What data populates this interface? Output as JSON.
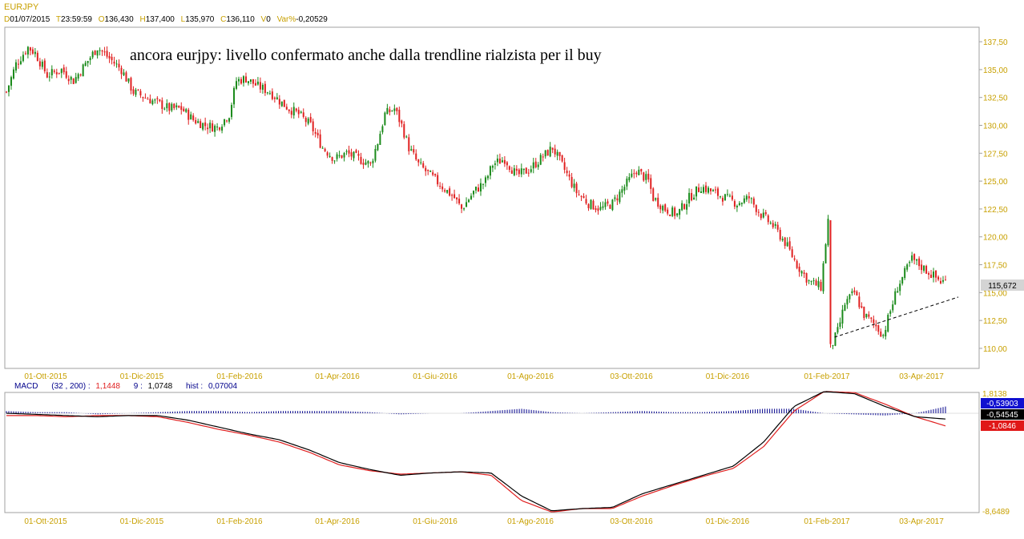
{
  "header": {
    "symbol": "EURJPY",
    "d_tag": "D",
    "date": "01/07/2015",
    "t_tag": "T",
    "time": "23:59:59",
    "o_tag": "O",
    "open": "136,430",
    "h_tag": "H",
    "high": "137,400",
    "l_tag": "L",
    "low": "135,970",
    "c_tag": "C",
    "close": "136,110",
    "v_tag": "V",
    "volume": "0",
    "var_tag": "Var%",
    "var": "-0,20529"
  },
  "annotation": "ancora eurjpy: livello confermato anche dalla trendline rialzista per il buy",
  "macd_header": {
    "name": "MACD",
    "params": "(32 , 200) :",
    "macd_value": "1,1448",
    "signal_period": "9 :",
    "signal_value": "1,0748",
    "hist_label": "hist :",
    "hist_value": "0,07004"
  },
  "colors": {
    "up_candle": "#1a8a1a",
    "down_candle": "#e02020",
    "axis_text": "#c8a000",
    "macd_line": "#000000",
    "signal_line": "#e02020",
    "histogram": "#00008b",
    "badge_blue": "#1010d0",
    "badge_black": "#000000",
    "badge_red": "#e01818",
    "badge_price": "#d4d4d4"
  },
  "chart_data": [
    {
      "type": "candlestick",
      "title": "EURJPY",
      "x_tick_labels": [
        "01-Ott-2015",
        "01-Dic-2015",
        "01-Feb-2016",
        "01-Apr-2016",
        "01-Giu-2016",
        "01-Ago-2016",
        "03-Ott-2016",
        "01-Dic-2016",
        "01-Feb-2017",
        "03-Apr-2017"
      ],
      "y_ticks": [
        "137,50",
        "135,00",
        "132,50",
        "130,00",
        "127,50",
        "125,00",
        "122,50",
        "120,00",
        "117,50",
        "115,00",
        "112,50",
        "110,00"
      ],
      "y_tick_values": [
        137.5,
        135.0,
        132.5,
        130.0,
        127.5,
        125.0,
        122.5,
        120.0,
        117.5,
        115.0,
        112.5,
        110.0
      ],
      "ylim": [
        108.2,
        138.8
      ],
      "x_index_range": [
        0,
        392
      ],
      "last_price_label": "115,672",
      "last_price": 115.672,
      "trendline": {
        "points": [
          [
            4,
            111.0
          ],
          [
            392,
            114.6
          ]
        ],
        "style": "dashed"
      },
      "close_path": [
        [
          0,
          133.0
        ],
        [
          4,
          135.5
        ],
        [
          9,
          137.0
        ],
        [
          12,
          136.5
        ],
        [
          17,
          134.5
        ],
        [
          23,
          135.0
        ],
        [
          28,
          134.0
        ],
        [
          33,
          135.5
        ],
        [
          38,
          137.0
        ],
        [
          43,
          136.0
        ],
        [
          48,
          135.0
        ],
        [
          53,
          133.0
        ],
        [
          58,
          132.5
        ],
        [
          63,
          132.0
        ],
        [
          68,
          131.5
        ],
        [
          73,
          131.5
        ],
        [
          78,
          130.5
        ],
        [
          83,
          130.0
        ],
        [
          88,
          129.8
        ],
        [
          93,
          131.0
        ],
        [
          96,
          134.0
        ],
        [
          100,
          134.2
        ],
        [
          105,
          133.5
        ],
        [
          110,
          133.0
        ],
        [
          115,
          132.0
        ],
        [
          118,
          131.5
        ],
        [
          122,
          131.0
        ],
        [
          127,
          130.0
        ],
        [
          132,
          128.0
        ],
        [
          137,
          127.0
        ],
        [
          142,
          127.5
        ],
        [
          147,
          127.0
        ],
        [
          152,
          126.5
        ],
        [
          155,
          128.5
        ],
        [
          158,
          131.0
        ],
        [
          162,
          131.5
        ],
        [
          165,
          130.0
        ],
        [
          168,
          128.0
        ],
        [
          172,
          126.5
        ],
        [
          177,
          125.5
        ],
        [
          182,
          124.5
        ],
        [
          187,
          123.5
        ],
        [
          190,
          122.5
        ],
        [
          195,
          124.0
        ],
        [
          200,
          125.0
        ],
        [
          203,
          126.5
        ],
        [
          208,
          127.0
        ],
        [
          213,
          125.5
        ],
        [
          218,
          126.0
        ],
        [
          223,
          127.0
        ],
        [
          228,
          128.0
        ],
        [
          233,
          126.0
        ],
        [
          238,
          124.0
        ],
        [
          243,
          123.0
        ],
        [
          248,
          122.5
        ],
        [
          253,
          123.0
        ],
        [
          258,
          124.5
        ],
        [
          263,
          126.0
        ],
        [
          268,
          125.0
        ],
        [
          270,
          123.5
        ],
        [
          275,
          122.5
        ],
        [
          280,
          122.0
        ],
        [
          285,
          123.5
        ],
        [
          290,
          124.5
        ],
        [
          295,
          124.0
        ],
        [
          300,
          123.5
        ],
        [
          305,
          123.0
        ],
        [
          310,
          123.5
        ],
        [
          315,
          122.0
        ],
        [
          320,
          121.0
        ],
        [
          325,
          119.5
        ],
        [
          330,
          117.5
        ],
        [
          335,
          116.0
        ],
        [
          340,
          115.5
        ],
        [
          343,
          121.5
        ],
        [
          344,
          110.0
        ],
        [
          347,
          111.5
        ],
        [
          350,
          114.0
        ],
        [
          354,
          115.0
        ],
        [
          358,
          113.0
        ],
        [
          363,
          112.0
        ],
        [
          366,
          111.2
        ],
        [
          372,
          115.5
        ],
        [
          378,
          118.0
        ],
        [
          384,
          117.0
        ],
        [
          390,
          116.0
        ]
      ]
    },
    {
      "type": "line",
      "title": "MACD",
      "x_tick_labels": [
        "01-Ott-2015",
        "01-Dic-2015",
        "01-Feb-2016",
        "01-Apr-2016",
        "01-Giu-2016",
        "01-Ago-2016",
        "03-Ott-2016",
        "01-Dic-2016",
        "01-Feb-2017",
        "03-Apr-2017"
      ],
      "y_max_label": "1,8138",
      "y_min_label": "-8,6489",
      "ylim": [
        -8.6489,
        1.8138
      ],
      "badges": [
        "-0,53903",
        "-0,54545",
        "-1,0846"
      ],
      "series": [
        {
          "name": "MACD (32 , 200)",
          "values": [
            0.0,
            -0.1,
            -0.2,
            -0.3,
            -0.2,
            -0.2,
            -0.6,
            -1.2,
            -1.8,
            -2.3,
            -3.2,
            -4.3,
            -4.9,
            -5.4,
            -5.2,
            -5.1,
            -5.2,
            -7.2,
            -8.5,
            -8.3,
            -8.2,
            -7.0,
            -6.2,
            -5.4,
            -4.6,
            -2.5,
            0.6,
            1.9,
            1.7,
            0.6,
            -0.3,
            -0.5
          ]
        },
        {
          "name": "Signal 9",
          "values": [
            -0.2,
            -0.2,
            -0.3,
            -0.2,
            -0.2,
            -0.3,
            -0.8,
            -1.4,
            -1.9,
            -2.5,
            -3.4,
            -4.5,
            -5.0,
            -5.3,
            -5.2,
            -5.1,
            -5.4,
            -7.6,
            -8.6,
            -8.3,
            -8.3,
            -7.2,
            -6.3,
            -5.5,
            -4.8,
            -2.9,
            0.2,
            1.9,
            1.8,
            0.8,
            -0.3,
            -1.1
          ]
        },
        {
          "name": "hist",
          "values": [
            0.2,
            0.1,
            0.1,
            -0.1,
            0.0,
            0.1,
            0.2,
            0.2,
            0.1,
            0.2,
            0.2,
            0.2,
            0.1,
            -0.1,
            0.0,
            0.0,
            0.2,
            0.4,
            0.1,
            0.0,
            0.1,
            0.2,
            0.1,
            0.1,
            0.2,
            0.4,
            0.4,
            0.0,
            -0.1,
            -0.2,
            0.0,
            0.6
          ]
        }
      ]
    }
  ]
}
